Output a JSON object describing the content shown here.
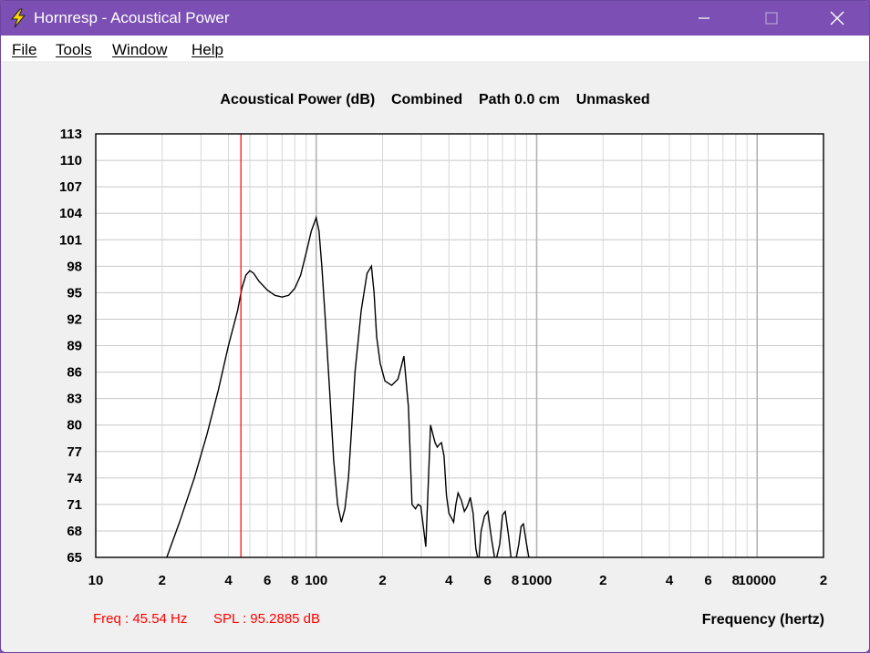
{
  "window": {
    "title": "Hornresp - Acoustical Power",
    "minimize_label": "—",
    "maximize_label": "☐",
    "close_label": "✕"
  },
  "menu": {
    "items": [
      {
        "label": "File",
        "underline": "F"
      },
      {
        "label": "Tools",
        "underline": "T"
      },
      {
        "label": "Window",
        "underline": "W"
      },
      {
        "label": "Help",
        "underline": "H"
      }
    ]
  },
  "status": {
    "freq": "Freq : 45.54 Hz",
    "spl": "SPL : 95.2885 dB"
  },
  "chart_data": {
    "type": "line",
    "title": "Acoustical Power (dB)    Combined    Path 0.0 cm    Unmasked",
    "xlabel": "Frequency (hertz)",
    "ylabel": "",
    "x_scale": "log",
    "xlim": [
      10,
      20000
    ],
    "ylim": [
      65,
      113
    ],
    "y_ticks": [
      65,
      68,
      71,
      74,
      77,
      80,
      83,
      86,
      89,
      92,
      95,
      98,
      101,
      104,
      107,
      110,
      113
    ],
    "x_tick_labels": [
      {
        "value": 10,
        "label": "10"
      },
      {
        "value": 20,
        "label": "2"
      },
      {
        "value": 40,
        "label": "4"
      },
      {
        "value": 60,
        "label": "6"
      },
      {
        "value": 80,
        "label": "8"
      },
      {
        "value": 100,
        "label": "100"
      },
      {
        "value": 200,
        "label": "2"
      },
      {
        "value": 400,
        "label": "4"
      },
      {
        "value": 600,
        "label": "6"
      },
      {
        "value": 800,
        "label": "8"
      },
      {
        "value": 1000,
        "label": "1000"
      },
      {
        "value": 2000,
        "label": "2"
      },
      {
        "value": 4000,
        "label": "4"
      },
      {
        "value": 6000,
        "label": "6"
      },
      {
        "value": 8000,
        "label": "8"
      },
      {
        "value": 10000,
        "label": "10000"
      },
      {
        "value": 20000,
        "label": "2"
      }
    ],
    "grid": true,
    "cursor": {
      "freq": 45.54,
      "color": "#ff0000"
    },
    "series": [
      {
        "color": "#000000",
        "x": [
          21,
          24,
          28,
          32,
          36,
          40,
          44,
          46,
          48,
          50,
          52,
          55,
          60,
          65,
          70,
          75,
          80,
          85,
          90,
          95,
          100,
          103,
          106,
          110,
          115,
          120,
          125,
          130,
          135,
          140,
          145,
          150,
          160,
          170,
          178,
          183,
          188,
          195,
          205,
          220,
          235,
          250,
          262,
          272,
          282,
          290,
          298,
          306,
          314,
          322,
          330,
          338,
          346,
          354,
          362,
          370,
          380,
          390,
          400,
          410,
          420,
          430,
          440,
          455,
          470,
          485,
          500,
          515,
          530,
          545,
          560,
          580,
          600,
          625,
          650,
          680,
          700,
          720,
          745,
          770,
          800,
          830,
          850,
          870,
          900,
          930,
          955,
          980,
          1000,
          1020,
          1040,
          1060,
          1080,
          1100,
          1110
        ],
        "y": [
          65,
          69,
          74,
          79,
          84,
          89,
          93,
          95.5,
          97,
          97.5,
          97.2,
          96.3,
          95.3,
          94.7,
          94.5,
          94.7,
          95.5,
          97,
          99.5,
          102,
          103.5,
          102,
          98,
          92,
          84,
          76,
          71,
          69,
          70.5,
          74,
          80,
          86,
          93,
          97.2,
          98,
          95,
          90,
          87,
          85,
          84.5,
          85.2,
          87.8,
          82,
          71,
          70.5,
          71,
          70.8,
          68.5,
          66.2,
          73,
          80,
          79,
          78,
          77.5,
          77.8,
          78,
          76.5,
          72,
          70,
          69.5,
          69,
          71,
          72.3,
          71.5,
          70.2,
          70.8,
          71.8,
          70,
          66,
          64.5,
          68,
          69.7,
          70.2,
          67,
          64,
          66.5,
          69.8,
          70.2,
          67.5,
          64.5,
          64,
          66.5,
          68.5,
          68.8,
          66.5,
          64.5,
          64,
          64,
          64,
          64,
          64,
          64,
          64,
          64,
          64
        ]
      }
    ]
  }
}
